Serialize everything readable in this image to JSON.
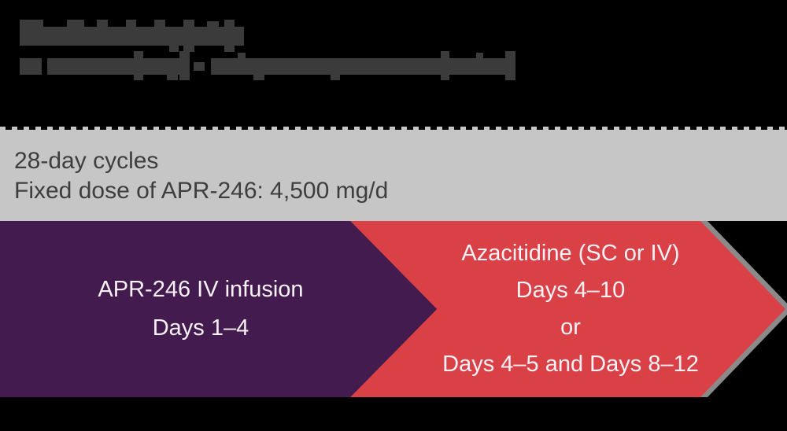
{
  "colors": {
    "background": "#000000",
    "redaction": "#3b3b3b",
    "band": "#c6c6c6",
    "text-dark": "#3e3e3e",
    "purple": "#431b4e",
    "red": "#da4146",
    "text-light": "#f8f2f6",
    "shadow": "#8a8a8a"
  },
  "header": {
    "redacted": true,
    "line1_blocks": [
      [
        25,
        25,
        30,
        9
      ],
      [
        85,
        25,
        22,
        9
      ],
      [
        123,
        25,
        14,
        9
      ],
      [
        160,
        25,
        13,
        9
      ],
      [
        196,
        25,
        14,
        9
      ],
      [
        25,
        34,
        285,
        24
      ],
      [
        233,
        25,
        14,
        41
      ],
      [
        285,
        25,
        13,
        41
      ],
      [
        263,
        27,
        15,
        7
      ],
      [
        215,
        58,
        12,
        8
      ]
    ],
    "line2_blocks": [
      [
        25,
        74,
        28,
        21
      ],
      [
        60,
        74,
        178,
        21
      ],
      [
        246,
        79,
        14,
        11
      ],
      [
        268,
        74,
        387,
        21
      ],
      [
        170,
        65,
        12,
        37
      ],
      [
        228,
        65,
        13,
        37
      ],
      [
        560,
        65,
        11,
        37
      ],
      [
        642,
        65,
        13,
        37
      ],
      [
        302,
        67,
        10,
        7
      ],
      [
        605,
        67,
        9,
        7
      ],
      [
        212,
        95,
        14,
        7
      ],
      [
        322,
        95,
        14,
        7
      ],
      [
        420,
        95,
        12,
        7
      ]
    ]
  },
  "info_bar": {
    "line1": "28-day cycles",
    "line2": "Fixed dose of APR-246: 4,500 mg/d"
  },
  "arrows": [
    {
      "color": "#431b4e",
      "lines": [
        "APR-246 IV infusion",
        "Days 1–4"
      ]
    },
    {
      "color": "#da4146",
      "lines": [
        "Azacitidine (SC or IV)",
        "Days 4–10",
        "or",
        "Days 4–5 and Days 8–12"
      ]
    }
  ]
}
